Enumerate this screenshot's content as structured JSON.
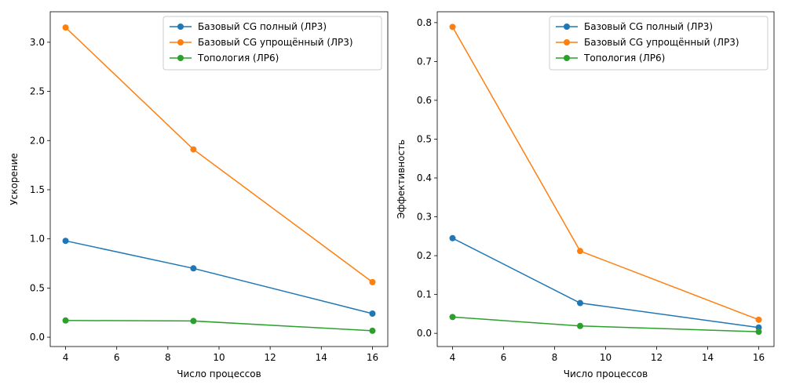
{
  "chart_data": [
    {
      "type": "line",
      "title": "",
      "xlabel": "Число процессов",
      "ylabel": "Ускорение",
      "x": [
        4,
        9,
        16
      ],
      "xlim": [
        3.4,
        16.6
      ],
      "ylim": [
        -0.095,
        3.31
      ],
      "xticks": [
        "4",
        "6",
        "8",
        "10",
        "12",
        "14",
        "16"
      ],
      "yticks": [
        "0.0",
        "0.5",
        "1.0",
        "1.5",
        "2.0",
        "2.5",
        "3.0"
      ],
      "legend_position": "top-right",
      "grid": false,
      "series": [
        {
          "name": "Базовый CG полный (ЛР3)",
          "color": "#1f77b4",
          "marker": "circle",
          "values": [
            0.98,
            0.7,
            0.24
          ]
        },
        {
          "name": "Базовый CG упрощённый (ЛР3)",
          "color": "#ff7f0e",
          "marker": "circle",
          "values": [
            3.15,
            1.91,
            0.56
          ]
        },
        {
          "name": "Топология (ЛР6)",
          "color": "#2ca02c",
          "marker": "circle",
          "values": [
            0.17,
            0.165,
            0.065
          ]
        }
      ]
    },
    {
      "type": "line",
      "title": "",
      "xlabel": "Число процессов",
      "ylabel": "Эффективность",
      "x": [
        4,
        9,
        16
      ],
      "xlim": [
        3.4,
        16.6
      ],
      "ylim": [
        -0.034,
        0.828
      ],
      "xticks": [
        "4",
        "6",
        "8",
        "10",
        "12",
        "14",
        "16"
      ],
      "yticks": [
        "0.0",
        "0.1",
        "0.2",
        "0.3",
        "0.4",
        "0.5",
        "0.6",
        "0.7",
        "0.8"
      ],
      "legend_position": "top-right",
      "grid": false,
      "series": [
        {
          "name": "Базовый CG полный (ЛР3)",
          "color": "#1f77b4",
          "marker": "circle",
          "values": [
            0.245,
            0.078,
            0.015
          ]
        },
        {
          "name": "Базовый CG упрощённый (ЛР3)",
          "color": "#ff7f0e",
          "marker": "circle",
          "values": [
            0.789,
            0.212,
            0.035
          ]
        },
        {
          "name": "Топология (ЛР6)",
          "color": "#2ca02c",
          "marker": "circle",
          "values": [
            0.042,
            0.019,
            0.004
          ]
        }
      ]
    }
  ]
}
